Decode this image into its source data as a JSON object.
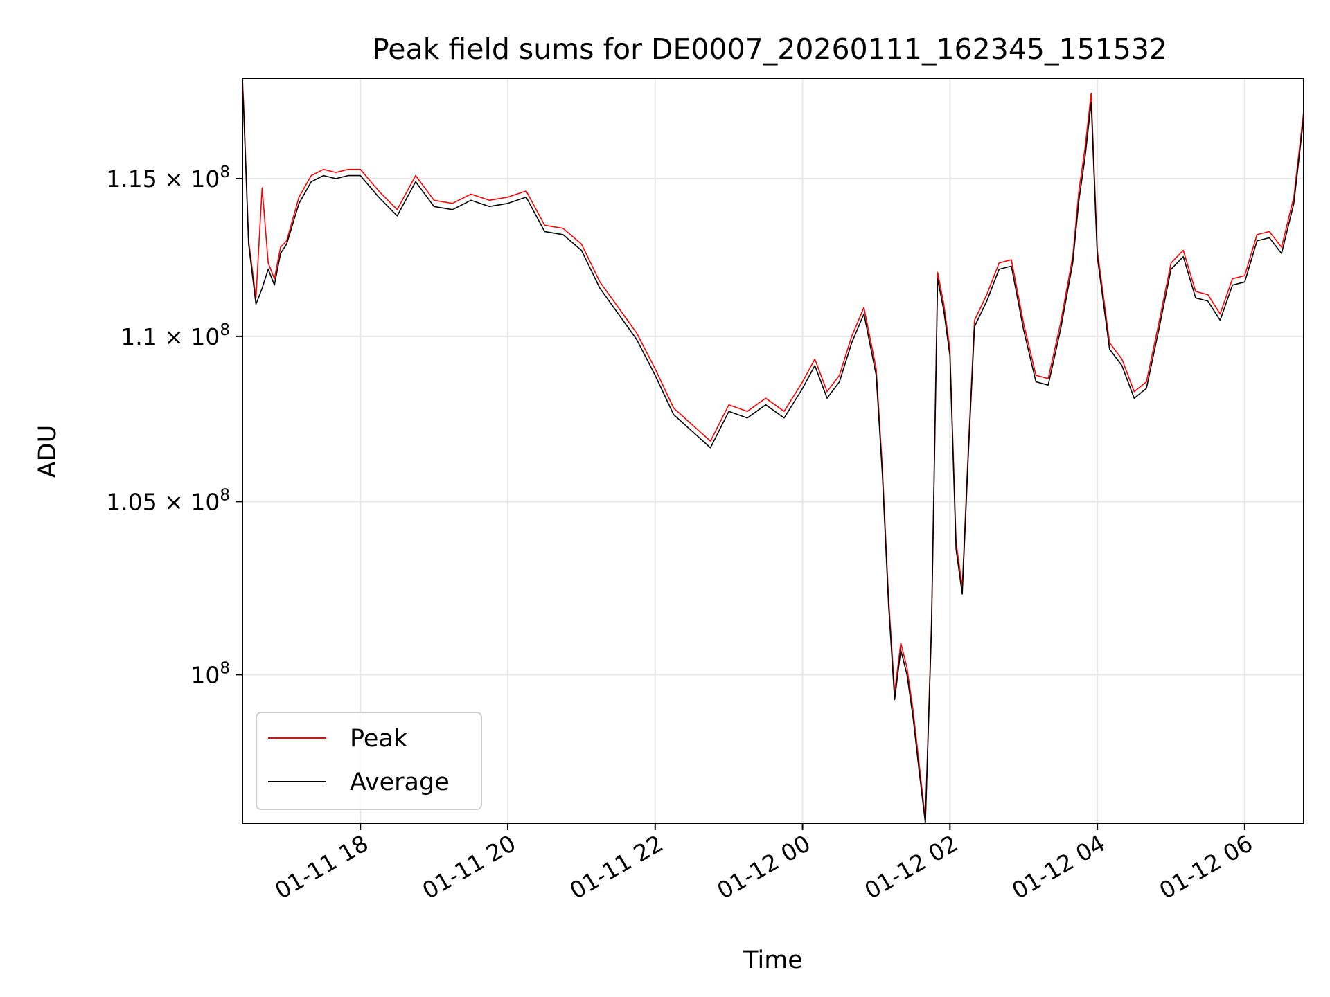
{
  "chart_data": {
    "type": "line",
    "title": "Peak field sums for DE0007_20260111_162345_151532",
    "xlabel": "Time",
    "ylabel": "ADU",
    "y_scale": "log",
    "grid": true,
    "legend_placement": "lower-left",
    "x_range": [
      "2026-01-11 16:24",
      "2026-01-12 06:48"
    ],
    "ylim": [
      95900000,
      118300000
    ],
    "x_ticks": [
      {
        "t": "2026-01-11 18:00",
        "label": "01-11 18"
      },
      {
        "t": "2026-01-11 20:00",
        "label": "01-11 20"
      },
      {
        "t": "2026-01-11 22:00",
        "label": "01-11 22"
      },
      {
        "t": "2026-01-12 00:00",
        "label": "01-12 00"
      },
      {
        "t": "2026-01-12 02:00",
        "label": "01-12 02"
      },
      {
        "t": "2026-01-12 04:00",
        "label": "01-12 04"
      },
      {
        "t": "2026-01-12 06:00",
        "label": "01-12 06"
      }
    ],
    "y_ticks": [
      {
        "v": 100000000,
        "mant": "10",
        "exp": "8"
      },
      {
        "v": 105000000,
        "mant": "1.05 × 10",
        "exp": "8"
      },
      {
        "v": 110000000,
        "mant": "1.1 × 10",
        "exp": "8"
      },
      {
        "v": 115000000,
        "mant": "1.15 × 10",
        "exp": "8"
      }
    ],
    "series": [
      {
        "name": "Peak",
        "color": "#ff0000",
        "x": [
          "2026-01-11 16:24",
          "2026-01-11 16:25",
          "2026-01-11 16:29",
          "2026-01-11 16:35",
          "2026-01-11 16:40",
          "2026-01-11 16:45",
          "2026-01-11 16:50",
          "2026-01-11 16:55",
          "2026-01-11 17:00",
          "2026-01-11 17:10",
          "2026-01-11 17:20",
          "2026-01-11 17:30",
          "2026-01-11 17:40",
          "2026-01-11 17:50",
          "2026-01-11 18:00",
          "2026-01-11 18:15",
          "2026-01-11 18:30",
          "2026-01-11 18:45",
          "2026-01-11 19:00",
          "2026-01-11 19:15",
          "2026-01-11 19:30",
          "2026-01-11 19:45",
          "2026-01-11 20:00",
          "2026-01-11 20:15",
          "2026-01-11 20:30",
          "2026-01-11 20:45",
          "2026-01-11 21:00",
          "2026-01-11 21:15",
          "2026-01-11 21:30",
          "2026-01-11 21:45",
          "2026-01-11 22:00",
          "2026-01-11 22:15",
          "2026-01-11 22:30",
          "2026-01-11 22:45",
          "2026-01-11 23:00",
          "2026-01-11 23:15",
          "2026-01-11 23:30",
          "2026-01-11 23:45",
          "2026-01-12 00:00",
          "2026-01-12 00:10",
          "2026-01-12 00:20",
          "2026-01-12 00:30",
          "2026-01-12 00:40",
          "2026-01-12 00:50",
          "2026-01-12 01:00",
          "2026-01-12 01:05",
          "2026-01-12 01:10",
          "2026-01-12 01:15",
          "2026-01-12 01:20",
          "2026-01-12 01:25",
          "2026-01-12 01:30",
          "2026-01-12 01:35",
          "2026-01-12 01:40",
          "2026-01-12 01:45",
          "2026-01-12 01:50",
          "2026-01-12 01:55",
          "2026-01-12 02:00",
          "2026-01-12 02:05",
          "2026-01-12 02:10",
          "2026-01-12 02:15",
          "2026-01-12 02:20",
          "2026-01-12 02:30",
          "2026-01-12 02:40",
          "2026-01-12 02:50",
          "2026-01-12 03:00",
          "2026-01-12 03:10",
          "2026-01-12 03:20",
          "2026-01-12 03:30",
          "2026-01-12 03:40",
          "2026-01-12 03:45",
          "2026-01-12 03:50",
          "2026-01-12 03:55",
          "2026-01-12 04:00",
          "2026-01-12 04:10",
          "2026-01-12 04:20",
          "2026-01-12 04:30",
          "2026-01-12 04:40",
          "2026-01-12 04:50",
          "2026-01-12 05:00",
          "2026-01-12 05:10",
          "2026-01-12 05:20",
          "2026-01-12 05:30",
          "2026-01-12 05:40",
          "2026-01-12 05:50",
          "2026-01-12 06:00",
          "2026-01-12 06:10",
          "2026-01-12 06:20",
          "2026-01-12 06:30",
          "2026-01-12 06:40",
          "2026-01-12 06:48"
        ],
        "values": [
          118300000,
          117400000,
          113000000,
          111200000,
          114700000,
          112300000,
          111800000,
          112800000,
          113000000,
          114400000,
          115100000,
          115300000,
          115200000,
          115300000,
          115300000,
          114600000,
          114000000,
          115100000,
          114300000,
          114200000,
          114500000,
          114300000,
          114400000,
          114600000,
          113500000,
          113400000,
          112900000,
          111700000,
          110900000,
          110100000,
          109000000,
          107800000,
          107300000,
          106800000,
          107900000,
          107700000,
          108100000,
          107700000,
          108600000,
          109300000,
          108300000,
          108800000,
          110000000,
          110900000,
          109000000,
          106000000,
          102200000,
          99500000,
          100900000,
          100200000,
          99000000,
          97500000,
          96000000,
          101500000,
          112000000,
          111000000,
          109600000,
          103800000,
          102500000,
          106600000,
          110500000,
          111300000,
          112300000,
          112400000,
          110400000,
          108800000,
          108700000,
          110400000,
          112500000,
          114600000,
          116000000,
          117800000,
          112700000,
          109800000,
          109300000,
          108300000,
          108600000,
          110400000,
          112300000,
          112700000,
          111400000,
          111300000,
          110700000,
          111800000,
          111900000,
          113200000,
          113300000,
          112800000,
          114400000,
          117200000
        ]
      },
      {
        "name": "Average",
        "color": "#000000",
        "x": [
          "2026-01-11 16:24",
          "2026-01-11 16:25",
          "2026-01-11 16:29",
          "2026-01-11 16:35",
          "2026-01-11 16:40",
          "2026-01-11 16:45",
          "2026-01-11 16:50",
          "2026-01-11 16:55",
          "2026-01-11 17:00",
          "2026-01-11 17:10",
          "2026-01-11 17:20",
          "2026-01-11 17:30",
          "2026-01-11 17:40",
          "2026-01-11 17:50",
          "2026-01-11 18:00",
          "2026-01-11 18:15",
          "2026-01-11 18:30",
          "2026-01-11 18:45",
          "2026-01-11 19:00",
          "2026-01-11 19:15",
          "2026-01-11 19:30",
          "2026-01-11 19:45",
          "2026-01-11 20:00",
          "2026-01-11 20:15",
          "2026-01-11 20:30",
          "2026-01-11 20:45",
          "2026-01-11 21:00",
          "2026-01-11 21:15",
          "2026-01-11 21:30",
          "2026-01-11 21:45",
          "2026-01-11 22:00",
          "2026-01-11 22:15",
          "2026-01-11 22:30",
          "2026-01-11 22:45",
          "2026-01-11 23:00",
          "2026-01-11 23:15",
          "2026-01-11 23:30",
          "2026-01-11 23:45",
          "2026-01-12 00:00",
          "2026-01-12 00:10",
          "2026-01-12 00:20",
          "2026-01-12 00:30",
          "2026-01-12 00:40",
          "2026-01-12 00:50",
          "2026-01-12 01:00",
          "2026-01-12 01:05",
          "2026-01-12 01:10",
          "2026-01-12 01:15",
          "2026-01-12 01:20",
          "2026-01-12 01:25",
          "2026-01-12 01:30",
          "2026-01-12 01:35",
          "2026-01-12 01:40",
          "2026-01-12 01:45",
          "2026-01-12 01:50",
          "2026-01-12 01:55",
          "2026-01-12 02:00",
          "2026-01-12 02:05",
          "2026-01-12 02:10",
          "2026-01-12 02:15",
          "2026-01-12 02:20",
          "2026-01-12 02:30",
          "2026-01-12 02:40",
          "2026-01-12 02:50",
          "2026-01-12 03:00",
          "2026-01-12 03:10",
          "2026-01-12 03:20",
          "2026-01-12 03:30",
          "2026-01-12 03:40",
          "2026-01-12 03:45",
          "2026-01-12 03:50",
          "2026-01-12 03:55",
          "2026-01-12 04:00",
          "2026-01-12 04:10",
          "2026-01-12 04:20",
          "2026-01-12 04:30",
          "2026-01-12 04:40",
          "2026-01-12 04:50",
          "2026-01-12 05:00",
          "2026-01-12 05:10",
          "2026-01-12 05:20",
          "2026-01-12 05:30",
          "2026-01-12 05:40",
          "2026-01-12 05:50",
          "2026-01-12 06:00",
          "2026-01-12 06:10",
          "2026-01-12 06:20",
          "2026-01-12 06:30",
          "2026-01-12 06:40",
          "2026-01-12 06:48"
        ],
        "values": [
          118000000,
          117200000,
          112900000,
          111000000,
          111500000,
          112100000,
          111600000,
          112600000,
          112900000,
          114200000,
          114900000,
          115100000,
          115000000,
          115100000,
          115100000,
          114400000,
          113800000,
          114900000,
          114100000,
          114000000,
          114300000,
          114100000,
          114200000,
          114400000,
          113300000,
          113200000,
          112700000,
          111500000,
          110700000,
          109900000,
          108800000,
          107600000,
          107100000,
          106600000,
          107700000,
          107500000,
          107900000,
          107500000,
          108400000,
          109100000,
          108100000,
          108600000,
          109800000,
          110700000,
          108800000,
          105800000,
          102000000,
          99300000,
          100700000,
          100000000,
          98800000,
          97300000,
          95900000,
          101300000,
          111800000,
          110800000,
          109400000,
          103600000,
          102300000,
          106400000,
          110300000,
          111100000,
          112100000,
          112200000,
          110200000,
          108600000,
          108500000,
          110200000,
          112300000,
          114300000,
          115700000,
          117500000,
          112500000,
          109600000,
          109100000,
          108100000,
          108400000,
          110200000,
          112100000,
          112500000,
          111200000,
          111100000,
          110500000,
          111600000,
          111700000,
          113000000,
          113100000,
          112600000,
          114200000,
          117000000
        ]
      }
    ]
  }
}
